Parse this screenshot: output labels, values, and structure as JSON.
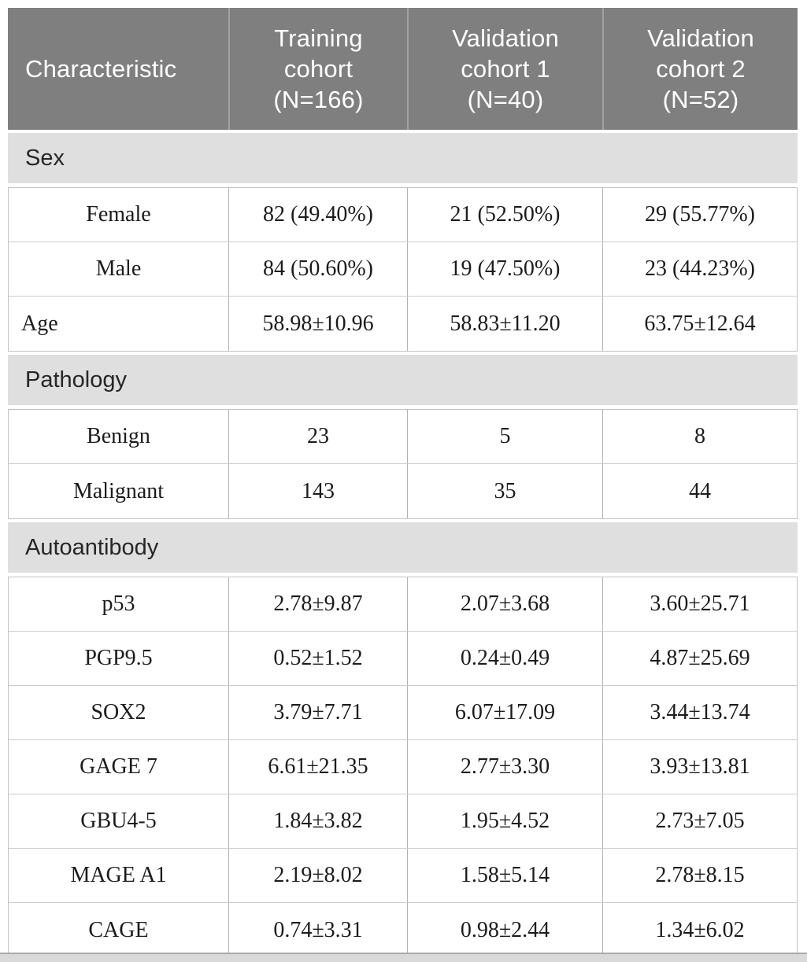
{
  "colors": {
    "header_bg": "#7f7f7f",
    "header_text": "#ffffff",
    "section_bg": "#dfdfdf",
    "section_text": "#262626",
    "body_text": "#1c1c1c",
    "row_border": "#c3c3c3",
    "header_divider": "#a2a2a2",
    "bottom_bar": "#d9d9d9"
  },
  "table": {
    "header": {
      "characteristic": "Characteristic",
      "cohorts": [
        "Training cohort (N=166)",
        "Validation cohort 1 (N=40)",
        "Validation cohort 2 (N=52)"
      ]
    },
    "sections": [
      {
        "title": "Sex",
        "rows": [
          {
            "label": "Female",
            "align": "center",
            "values": [
              "82 (49.40%)",
              "21 (52.50%)",
              "29 (55.77%)"
            ]
          },
          {
            "label": "Male",
            "align": "center",
            "values": [
              "84 (50.60%)",
              "19 (47.50%)",
              "23 (44.23%)"
            ]
          },
          {
            "label": "Age",
            "align": "left",
            "values": [
              "58.98±10.96",
              "58.83±11.20",
              "63.75±12.64"
            ]
          }
        ]
      },
      {
        "title": "Pathology",
        "rows": [
          {
            "label": "Benign",
            "align": "center",
            "values": [
              "23",
              "5",
              "8"
            ]
          },
          {
            "label": "Malignant",
            "align": "center",
            "values": [
              "143",
              "35",
              "44"
            ]
          }
        ]
      },
      {
        "title": "Autoantibody",
        "rows": [
          {
            "label": "p53",
            "align": "center",
            "values": [
              "2.78±9.87",
              "2.07±3.68",
              "3.60±25.71"
            ]
          },
          {
            "label": "PGP9.5",
            "align": "center",
            "values": [
              "0.52±1.52",
              "0.24±0.49",
              "4.87±25.69"
            ]
          },
          {
            "label": "SOX2",
            "align": "center",
            "values": [
              "3.79±7.71",
              "6.07±17.09",
              "3.44±13.74"
            ]
          },
          {
            "label": "GAGE 7",
            "align": "center",
            "values": [
              "6.61±21.35",
              "2.77±3.30",
              "3.93±13.81"
            ]
          },
          {
            "label": "GBU4-5",
            "align": "center",
            "values": [
              "1.84±3.82",
              "1.95±4.52",
              "2.73±7.05"
            ]
          },
          {
            "label": "MAGE A1",
            "align": "center",
            "values": [
              "2.19±8.02",
              "1.58±5.14",
              "2.78±8.15"
            ]
          },
          {
            "label": "CAGE",
            "align": "center",
            "values": [
              "0.74±3.31",
              "0.98±2.44",
              "1.34±6.02"
            ]
          }
        ]
      }
    ]
  }
}
